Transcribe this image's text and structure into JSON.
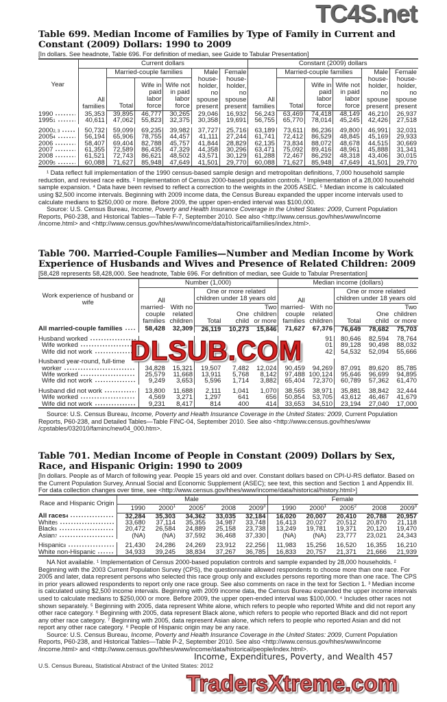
{
  "watermarks": {
    "top": "TC4S.net",
    "middle": "DLSUB.COM",
    "bottom": "TradersXtreme.com"
  },
  "t699": {
    "title": "Table 699. Median Income of Families by Type of Family in Current and Constant (2009) Dollars: 1990 to 2009",
    "headnote": "[In dollars. See headnote, Table 696. For definition of median, see Guide to Tabular Presentation]",
    "h": {
      "year": "Year",
      "current": "Current dollars",
      "constant": "Constant (2009) dollars",
      "all": "All families",
      "married": "Married-couple families",
      "total": "Total",
      "wife_paid": "Wife in paid labor force",
      "wife_not": "Wife not in paid labor force",
      "male": "Male house-holder, no spouse present",
      "female": "Female house-holder, no spouse present"
    },
    "groups": [
      [
        {
          "label": "1990",
          "sup": "",
          "v": [
            "35,353",
            "39,895",
            "46,777",
            "30,265",
            "29,046",
            "16,932",
            "56,243",
            "63,469",
            "74,418",
            "48,149",
            "46,210",
            "26,937"
          ]
        },
        {
          "label": "1995",
          "sup": "1",
          "v": [
            "40,611",
            "47,062",
            "55,823",
            "32,375",
            "30,358",
            "19,691",
            "56,755",
            "65,770",
            "78,014",
            "45,245",
            "42,426",
            "27,518"
          ]
        }
      ],
      [
        {
          "label": "2000",
          "sup": "2, 3",
          "v": [
            "50,732",
            "59,099",
            "69,235",
            "39,982",
            "37,727",
            "25,716",
            "63,189",
            "73,611",
            "86,236",
            "49,800",
            "46,991",
            "32,031"
          ]
        },
        {
          "label": "2005",
          "sup": "4",
          "v": [
            "56,194",
            "65,906",
            "78,755",
            "44,457",
            "41,111",
            "27,244",
            "61,741",
            "72,412",
            "86,529",
            "48,845",
            "45,169",
            "29,933"
          ]
        },
        {
          "label": "2006",
          "sup": "",
          "v": [
            "58,407",
            "69,404",
            "82,788",
            "45,757",
            "41,844",
            "28,829",
            "62,135",
            "73,834",
            "88,072",
            "48,678",
            "44,515",
            "30,669"
          ]
        },
        {
          "label": "2007",
          "sup": "",
          "v": [
            "61,355",
            "72,589",
            "86,435",
            "47,329",
            "44,358",
            "30,296",
            "63,471",
            "75,092",
            "89,416",
            "48,961",
            "45,888",
            "31,341"
          ]
        },
        {
          "label": "2008",
          "sup": "",
          "v": [
            "61,521",
            "72,743",
            "86,621",
            "48,502",
            "43,571",
            "30,129",
            "61,288",
            "72,467",
            "86,292",
            "48,318",
            "43,406",
            "30,015"
          ]
        },
        {
          "label": "2009",
          "sup": "5",
          "v": [
            "60,088",
            "71,627",
            "85,948",
            "47,649",
            "41,501",
            "29,770",
            "60,088",
            "71,627",
            "85,948",
            "47,649",
            "41,501",
            "29,770"
          ]
        }
      ]
    ],
    "footnotes": "¹ Data reflect full implementation of the 1990 census-based sample design and metropolitan definitions, 7,000 household sample reduction, and revised race edits. ² Implementation of Census 2000-based population controls. ³ Implementation of a 28,000 household sample expansion. ⁴ Data have been revised to reflect a correction to the weights in the 2005 ASEC. ⁵ Median income is calculated using $2,500 income intervals. Beginning with 2009 income data, the Census Bureau expanded the upper income intervals used to calculate medians to $250,000 or more. Before 2009, the upper open-ended interval was $100,000.",
    "source_pre": "Source: U.S. Census Bureau, ",
    "source_title": "Income, Poverty and Health Insurance Coverage in the United States: 2009",
    "source_post": ", Current Population Reports, P60-238, and Historical Tables—Table F-7, September 2010. See also <http://www.census.gov/hhes/www/income /income.html> and <http://www.census.gov/hhes/www/income/data/historical/families/index.html>."
  },
  "t700": {
    "title": "Table 700. Married-Couple Families—Number and Median Income by Work Experience of Husbands and Wives and Presence of Related Children: 2009",
    "headnote": "[58,428 represents 58,428,000. See headnote, Table 696. For definition of median, see Guide to Tabular Presentation]",
    "h": {
      "stub": "Work experience of husband or wife",
      "number": "Number (1,000)",
      "median": "Median income (dollars)",
      "all": "All married-couple families",
      "nochild": "With no related children",
      "oneormore": "One or more related children under 18 years old",
      "total": "Total",
      "one": "One child",
      "two": "Two children or more"
    },
    "groups": [
      [
        {
          "label": "All married-couple families",
          "bold": true,
          "level": 0,
          "v": [
            "58,428",
            "32,309",
            "26,119",
            "10,273",
            "15,846",
            "71,627",
            "67,376",
            "76,649",
            "78,682",
            "75,703"
          ]
        }
      ],
      [
        {
          "label": "Husband worked",
          "level": 0,
          "v": [
            "",
            "",
            "",
            "",
            "",
            "",
            "91",
            "80,646",
            "82,594",
            "78,764"
          ]
        },
        {
          "label": "Wife worked",
          "level": 1,
          "v": [
            "",
            "",
            "",
            "",
            "",
            "",
            "01",
            "89,128",
            "90,498",
            "88,032"
          ]
        },
        {
          "label": "Wife did not work",
          "level": 1,
          "v": [
            "",
            "",
            "",
            "",
            "",
            "",
            "42",
            "54,532",
            "52,094",
            "55,666"
          ]
        }
      ],
      [
        {
          "label": "Husband year-round, full-time",
          "level": 0,
          "nodots": true,
          "v": []
        },
        {
          "label": "worker",
          "level": 1,
          "v": [
            "34,828",
            "15,321",
            "19,507",
            "7,482",
            "12,024",
            "90,459",
            "94,269",
            "87,091",
            "89,620",
            "85,785"
          ]
        },
        {
          "label": "Wife worked",
          "level": 1,
          "v": [
            "25,579",
            "11,668",
            "13,911",
            "5,768",
            "8,142",
            "97,488",
            "100,124",
            "95,646",
            "96,699",
            "94,895"
          ]
        },
        {
          "label": "Wife did not work",
          "level": 1,
          "v": [
            "9,249",
            "3,653",
            "5,596",
            "1,714",
            "3,882",
            "65,404",
            "72,370",
            "60,789",
            "57,362",
            "61,470"
          ]
        }
      ],
      [
        {
          "label": "Husband did not work",
          "level": 0,
          "v": [
            "13,800",
            "11,688",
            "2,111",
            "1,041",
            "1,070",
            "38,565",
            "38,971",
            "35,881",
            "38,842",
            "32,444"
          ]
        },
        {
          "label": "Wife worked",
          "level": 1,
          "v": [
            "4,569",
            "3,271",
            "1,297",
            "641",
            "656",
            "50,854",
            "53,705",
            "43,612",
            "46,467",
            "41,679"
          ]
        },
        {
          "label": "Wife did not work",
          "level": 1,
          "v": [
            "9,231",
            "8,417",
            "814",
            "400",
            "414",
            "33,653",
            "34,510",
            "23,194",
            "27,040",
            "17,000"
          ]
        }
      ]
    ],
    "source_pre": "Source: U.S. Census Bureau, ",
    "source_title": "Income, Poverty and Health Insurance Coverage in the United States: 2009",
    "source_post": ", Current Population Reports, P60-238, and Detailed Tables—Table FINC-04, September 2010. See also <http://www.census.gov/hhes/www /cpstables/032010/faminc/new04_000.htm>."
  },
  "t701": {
    "title": "Table 701. Median Income of People in Constant (2009) Dollars by Sex, Race, and Hispanic Origin: 1990 to 2009",
    "headnote": "[In dollars. People as of March of following year. People 15 years old and over. Constant dollars based on CPI-U-RS deflator. Based on the Current Population Survey, Annual Social and Economic Supplement (ASEC); see text, this section and Section 1 and Appendix III. For data collection changes over time, see <http://www.census.gov/hhes/www/income/data/historical/history.html>]",
    "h": {
      "stub": "Race and Hispanic Origin",
      "male": "Male",
      "female": "Female"
    },
    "years": [
      {
        "y": "1990",
        "sup": ""
      },
      {
        "y": "2000",
        "sup": "1"
      },
      {
        "y": "2005",
        "sup": "2"
      },
      {
        "y": "2008",
        "sup": ""
      },
      {
        "y": "2009",
        "sup": "3"
      }
    ],
    "groups": [
      [
        {
          "label": "All races",
          "sup": "4",
          "bold": true,
          "v": [
            "32,284",
            "35,303",
            "34,362",
            "33,035",
            "32,184",
            "16,020",
            "20,007",
            "20,410",
            "20,788",
            "20,957"
          ]
        },
        {
          "label": "White",
          "sup": "5",
          "v": [
            "33,680",
            "37,114",
            "35,355",
            "34,987",
            "33,748",
            "16,413",
            "20,027",
            "20,512",
            "20,870",
            "21,118"
          ]
        },
        {
          "label": "Black",
          "sup": "6",
          "v": [
            "20,472",
            "26,584",
            "24,889",
            "25,158",
            "23,738",
            "13,249",
            "19,781",
            "19,371",
            "20,120",
            "19,470"
          ]
        },
        {
          "label": "Asian",
          "sup": "7",
          "v": [
            "(NA)",
            "(NA)",
            "37,592",
            "36,468",
            "37,330",
            "(NA)",
            "(NA)",
            "23,777",
            "23,021",
            "24,343"
          ]
        }
      ],
      [
        {
          "label": "Hispanic",
          "sup": "8",
          "v": [
            "21,430",
            "24,286",
            "24,269",
            "23,912",
            "22,256",
            "11,983",
            "15,256",
            "16,520",
            "16,355",
            "16,210"
          ]
        },
        {
          "label": "White non-Hispanic",
          "sup": "",
          "v": [
            "34,933",
            "39,245",
            "38,834",
            "37,267",
            "36,785",
            "16,833",
            "20,757",
            "21,371",
            "21,666",
            "21,939"
          ]
        }
      ]
    ],
    "footnotes": "NA Not available. ¹ Implementation of Census 2000-based population controls and sample expanded by 28,000 households. ² Beginning with the 2003 Current Population Survey (CPS), the questionnaire allowed respondents to choose more than one race. For 2005 and later, data represent persons who selected this race group only and excludes persons reporting more than one race. The CPS in prior years allowed respondents to report only one race group. See also comments on race in the text for Section 1. ³ Median income is calculated using $2,500 income intervals. Beginning with 2009 income data, the Census Bureau expanded the upper income intervals used to calculate medians to $250,000 or more. Before 2009, the upper open-ended interval was $100,000. ⁴ Includes other races not shown separately. ⁵ Beginning with 2005, data represent White alone, which refers to people who reported White and did not report any other race category. ⁶ Beginning with 2005, data represent Black alone, which refers to people who reported Black and did not report any other race category. ⁷ Beginning with 2005, data represent Asian alone, which refers to people who reported Asian and did not report any other race category. ⁸ People of Hispanic origin may be any race.",
    "source_pre": "Source: U.S. Census Bureau, ",
    "source_title": "Income, Poverty and Health Insurance Coverage in the United States: 2009",
    "source_post": ", Current Population Reports, P60-238, and Historical Tables—Table P-2, September 2010. See also <http://www.census.gov/hhes/www/income /income.html> and <http://www.census.gov/hhes/www/income/data/historical/people/index.html>."
  },
  "page_header": "Income, Expenditures, Poverty, and Wealth  457",
  "footer": "U.S. Census Bureau, Statistical Abstract of the United States: 2012"
}
